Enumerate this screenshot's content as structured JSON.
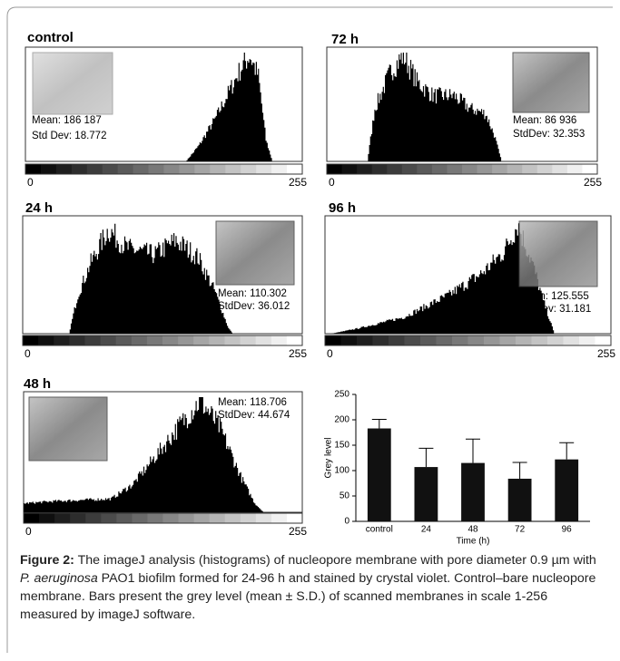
{
  "panels": [
    {
      "title": "control",
      "mean": "Mean: 186 187",
      "sd": "Std Dev:  18.772",
      "min": "0",
      "max": "255"
    },
    {
      "title": "72 h",
      "mean": "Mean: 86 936",
      "sd": "StdDev: 32.353",
      "min": "0",
      "max": "255"
    },
    {
      "title": "24 h",
      "mean": "Mean: 110.302",
      "sd": "StdDev: 36.012",
      "min": "0",
      "max": "255"
    },
    {
      "title": "96 h",
      "mean": "Mean: 125.555",
      "sd": "StdDev: 31.181",
      "min": "0",
      "max": "255"
    },
    {
      "title": "48 h",
      "mean": "Mean: 118.706",
      "sd": "StdDev: 44.674",
      "min": "0",
      "max": "255"
    }
  ],
  "chart_data": {
    "type": "bar",
    "categories": [
      "control",
      "24",
      "48",
      "72",
      "96"
    ],
    "values": [
      183,
      107,
      115,
      84,
      122
    ],
    "errors": [
      18,
      37,
      47,
      32,
      33
    ],
    "color": "#111111",
    "ylim": [
      0,
      250
    ],
    "yticks": [
      0,
      50,
      100,
      150,
      200,
      250
    ],
    "xlabel": "Time (h)",
    "ylabel": "Grey level"
  },
  "caption": {
    "label": "Figure 2:",
    "text1": " The imageJ analysis (histograms) of nucleopore membrane with pore diameter 0.9 µm with ",
    "species": "P. aeruginosa",
    "text2": " PAO1 biofilm formed for 24-96 h and stained by crystal violet. Control–bare nucleopore membrane. Bars present the grey level (mean ± S.D.) of scanned membranes in scale 1-256 measured by imageJ software."
  }
}
